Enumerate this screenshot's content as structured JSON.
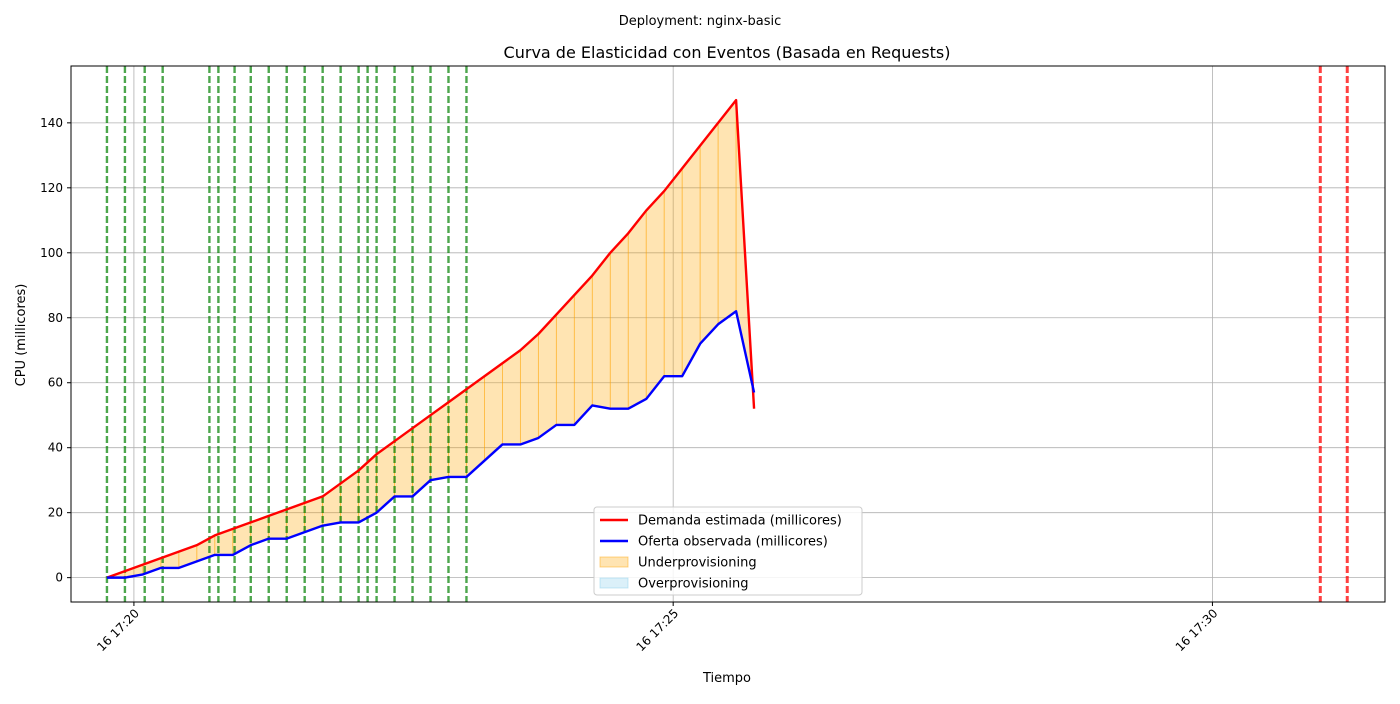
{
  "chart_data": {
    "type": "line",
    "suptitle": "Deployment: nginx-basic",
    "title": "Curva de Elasticidad con Eventos (Basada en Requests)",
    "xlabel": "Tiempo",
    "ylabel": "CPU (millicores)",
    "x_range": [
      "17:19:25",
      "17:31:36"
    ],
    "ylim": [
      -7.5,
      157.5
    ],
    "grid": true,
    "yticks": [
      0,
      20,
      40,
      60,
      80,
      100,
      120,
      140
    ],
    "xticks": [
      {
        "time": "17:20:00",
        "label": "16 17:20"
      },
      {
        "time": "17:25:00",
        "label": "16 17:25"
      },
      {
        "time": "17:30:00",
        "label": "16 17:30"
      }
    ],
    "legend": {
      "position": "bottom-center",
      "entries": [
        {
          "label": "Demanda estimada (millicores)",
          "kind": "line",
          "color": "#ff0000"
        },
        {
          "label": "Oferta observada (millicores)",
          "kind": "line",
          "color": "#0000ff"
        },
        {
          "label": "Underprovisioning",
          "kind": "area",
          "color": "#ffa500"
        },
        {
          "label": "Overprovisioning",
          "kind": "area",
          "color": "#87ceeb"
        }
      ]
    },
    "series": [
      {
        "name": "Demanda estimada (millicores)",
        "color": "#ff0000",
        "x": [
          "17:19:45",
          "17:19:55",
          "17:20:05",
          "17:20:15",
          "17:20:25",
          "17:20:35",
          "17:20:45",
          "17:20:55",
          "17:21:05",
          "17:21:15",
          "17:21:25",
          "17:21:35",
          "17:21:45",
          "17:21:55",
          "17:22:05",
          "17:22:15",
          "17:22:25",
          "17:22:35",
          "17:22:45",
          "17:22:55",
          "17:23:05",
          "17:23:15",
          "17:23:25",
          "17:23:35",
          "17:23:45",
          "17:23:55",
          "17:24:05",
          "17:24:15",
          "17:24:25",
          "17:24:35",
          "17:24:45",
          "17:24:55",
          "17:25:05",
          "17:25:15",
          "17:25:25",
          "17:25:35",
          "17:25:45"
        ],
        "y": [
          0,
          2,
          4,
          6,
          8,
          10,
          13,
          15,
          17,
          19,
          21,
          23,
          25,
          29,
          33,
          38,
          42,
          46,
          50,
          54,
          58,
          62,
          66,
          70,
          75,
          81,
          87,
          93,
          100,
          106,
          113,
          119,
          126,
          133,
          140,
          147,
          52
        ]
      },
      {
        "name": "Oferta observada (millicores)",
        "color": "#0000ff",
        "x": [
          "17:19:45",
          "17:19:55",
          "17:20:05",
          "17:20:15",
          "17:20:25",
          "17:20:35",
          "17:20:45",
          "17:20:55",
          "17:21:05",
          "17:21:15",
          "17:21:25",
          "17:21:35",
          "17:21:45",
          "17:21:55",
          "17:22:05",
          "17:22:15",
          "17:22:25",
          "17:22:35",
          "17:22:45",
          "17:22:55",
          "17:23:05",
          "17:23:15",
          "17:23:25",
          "17:23:35",
          "17:23:45",
          "17:23:55",
          "17:24:05",
          "17:24:15",
          "17:24:25",
          "17:24:35",
          "17:24:45",
          "17:24:55",
          "17:25:05",
          "17:25:15",
          "17:25:25",
          "17:25:35",
          "17:25:45"
        ],
        "y": [
          0,
          0,
          1,
          3,
          3,
          5,
          7,
          7,
          10,
          12,
          12,
          14,
          16,
          17,
          17,
          20,
          25,
          25,
          30,
          31,
          31,
          36,
          41,
          41,
          43,
          47,
          47,
          53,
          52,
          52,
          55,
          62,
          62,
          72,
          78,
          82,
          57
        ]
      }
    ],
    "events": {
      "scale_up": {
        "color": "#008000",
        "times": [
          "17:19:45",
          "17:19:55",
          "17:20:06",
          "17:20:16",
          "17:20:42",
          "17:20:47",
          "17:20:56",
          "17:21:05",
          "17:21:15",
          "17:21:25",
          "17:21:35",
          "17:21:45",
          "17:21:55",
          "17:22:05",
          "17:22:10",
          "17:22:15",
          "17:22:25",
          "17:22:35",
          "17:22:45",
          "17:22:55",
          "17:23:05"
        ]
      },
      "scale_down": {
        "color": "#ff0000",
        "times": [
          "17:31:00",
          "17:31:15"
        ]
      }
    }
  }
}
